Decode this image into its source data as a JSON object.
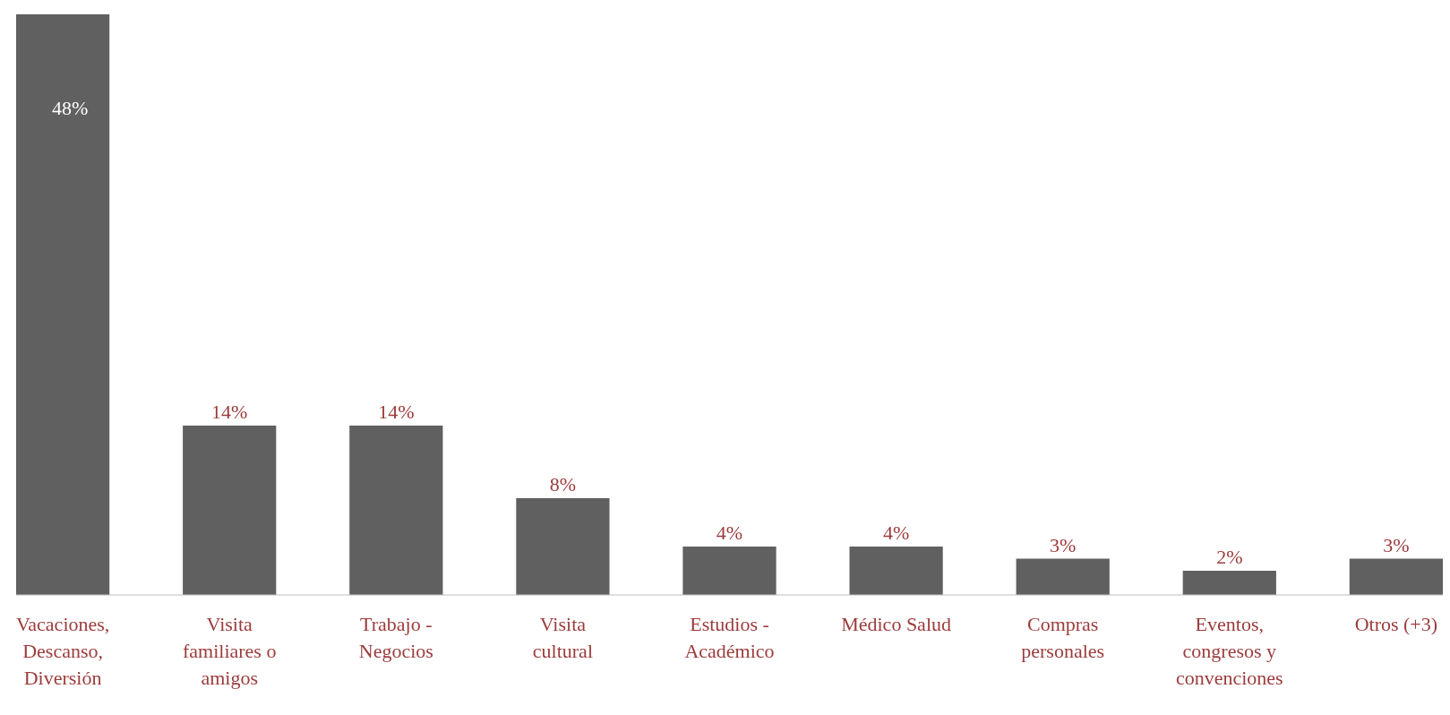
{
  "chart_data": {
    "type": "bar",
    "categories": [
      "Vacaciones, Descanso, Diversión",
      "Visita familiares o amigos",
      "Trabajo - Negocios",
      "Visita cultural",
      "Estudios - Académico",
      "Médico Salud",
      "Compras personales",
      "Eventos, congresos y convenciones",
      "Otros (+3)"
    ],
    "values": [
      48,
      14,
      14,
      8,
      4,
      4,
      3,
      2,
      3
    ],
    "value_labels": [
      "48%",
      "14%",
      "14%",
      "8%",
      "4%",
      "4%",
      "3%",
      "2%",
      "3%"
    ],
    "color": "#606060"
  }
}
